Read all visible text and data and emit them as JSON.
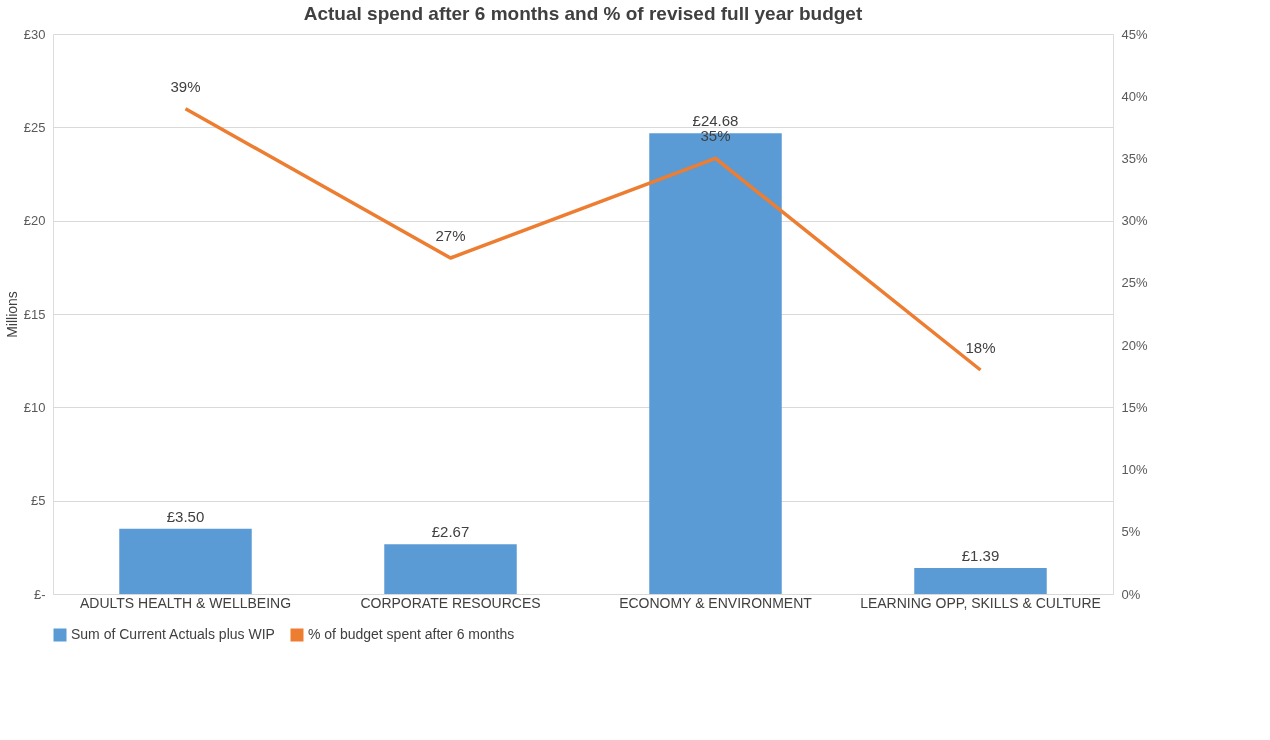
{
  "chart_data": {
    "type": "bar",
    "title": "Actual spend after 6 months and % of revised full year budget",
    "categories": [
      "ADULTS HEALTH & WELLBEING",
      "CORPORATE RESOURCES",
      "ECONOMY & ENVIRONMENT",
      "LEARNING OPP, SKILLS & CULTURE"
    ],
    "ylabel": "Millions",
    "ylim": [
      0,
      30
    ],
    "yticks": [
      {
        "value": 0,
        "label": "£-"
      },
      {
        "value": 5,
        "label": "£5"
      },
      {
        "value": 10,
        "label": "£10"
      },
      {
        "value": 15,
        "label": "£15"
      },
      {
        "value": 20,
        "label": "£20"
      },
      {
        "value": 25,
        "label": "£25"
      },
      {
        "value": 30,
        "label": "£30"
      }
    ],
    "y2lim": [
      0,
      45
    ],
    "y2ticks": [
      {
        "value": 0,
        "label": "0%"
      },
      {
        "value": 5,
        "label": "5%"
      },
      {
        "value": 10,
        "label": "10%"
      },
      {
        "value": 15,
        "label": "15%"
      },
      {
        "value": 20,
        "label": "20%"
      },
      {
        "value": 25,
        "label": "25%"
      },
      {
        "value": 30,
        "label": "30%"
      },
      {
        "value": 35,
        "label": "35%"
      },
      {
        "value": 40,
        "label": "40%"
      },
      {
        "value": 45,
        "label": "45%"
      }
    ],
    "series": [
      {
        "name": "Sum of Current Actuals plus WIP",
        "color": "#5b9bd5",
        "values": [
          3.5,
          2.67,
          24.68,
          1.39
        ],
        "value_labels": [
          "£3.50",
          "£2.67",
          "£24.68",
          "£1.39"
        ]
      },
      {
        "name": "% of budget spent after 6 months",
        "type": "line",
        "axis": "y2",
        "color": "#ed7d31",
        "values": [
          39,
          27,
          35,
          18
        ],
        "value_labels": [
          "39%",
          "27%",
          "35%",
          "18%"
        ]
      }
    ],
    "grid": "y",
    "legend": "bottom",
    "marker": "none",
    "line_style": "solid"
  }
}
